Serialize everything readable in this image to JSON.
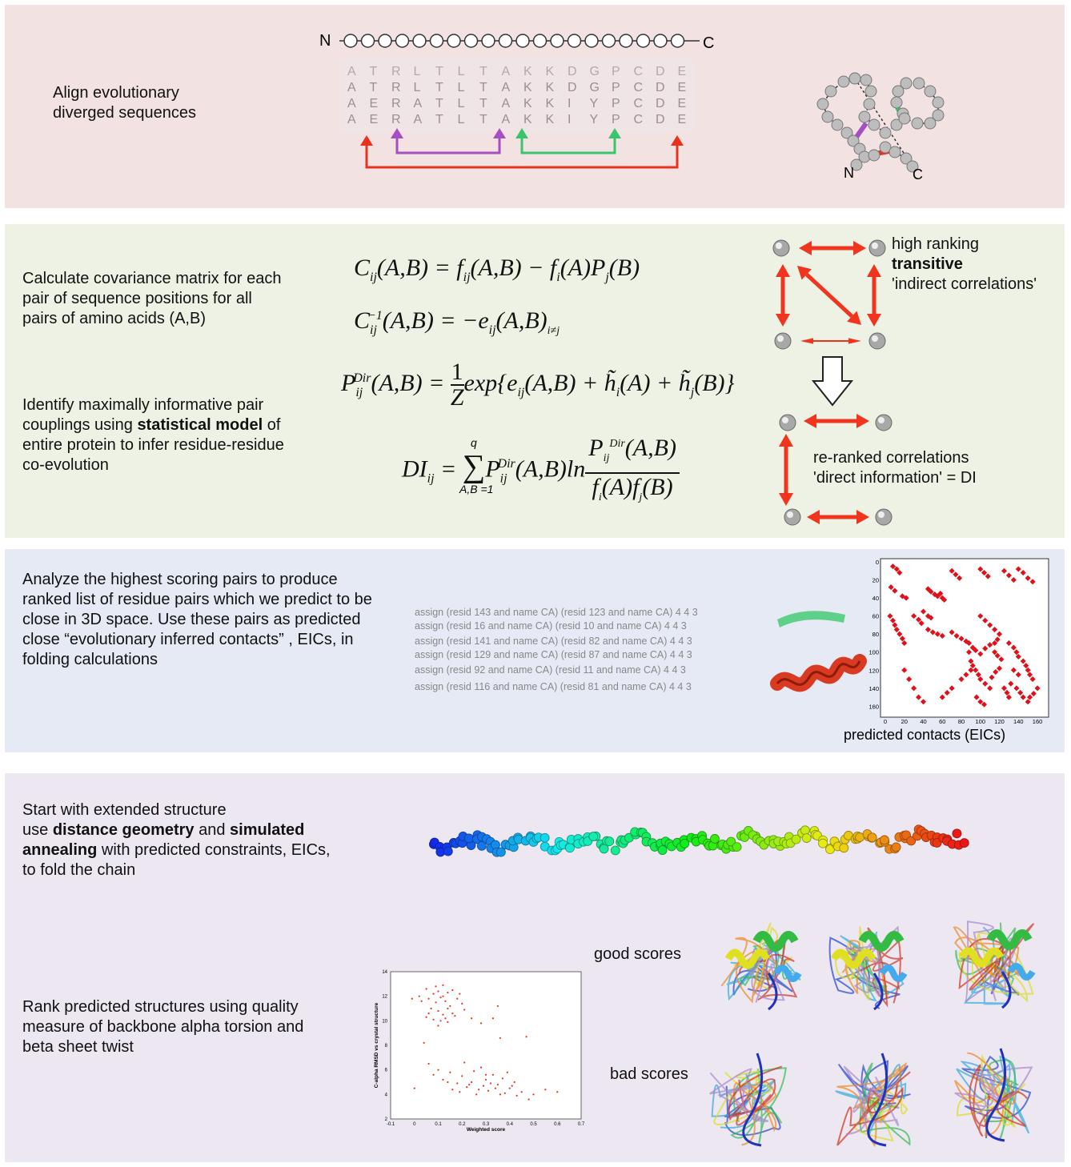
{
  "panel1": {
    "text": [
      "Align evolutionary",
      "diverged sequences"
    ],
    "n_label": "N",
    "c_label": "C",
    "alignment": [
      [
        "A",
        "T",
        "R",
        "L",
        "T",
        "L",
        "T",
        "A",
        "K",
        "K",
        "D",
        "G",
        "P",
        "C",
        "D",
        "E"
      ],
      [
        "A",
        "T",
        "R",
        "L",
        "T",
        "L",
        "T",
        "A",
        "K",
        "K",
        "D",
        "G",
        "P",
        "C",
        "D",
        "E"
      ],
      [
        "A",
        "E",
        "R",
        "A",
        "T",
        "L",
        "T",
        "A",
        "K",
        "K",
        "I",
        "Y",
        "P",
        "C",
        "D",
        "E"
      ],
      [
        "A",
        "E",
        "R",
        "A",
        "T",
        "L",
        "T",
        "A",
        "K",
        "K",
        "I",
        "Y",
        "P",
        "C",
        "D",
        "E"
      ]
    ],
    "structure_n": "N",
    "structure_c": "C",
    "colors": {
      "red": "#e8321e",
      "purple": "#a54fc2",
      "green": "#3ac46b"
    }
  },
  "panel2": {
    "text1": [
      "Calculate covariance matrix for each",
      "pair of sequence positions for all",
      "pairs of amino acids (A,B)"
    ],
    "text2_line1": "Identify maximally informative pair",
    "text2_line2_pre": "couplings using ",
    "text2_line2_bold": "statistical model",
    "text2_line2_post": " of",
    "text2_line3": "entire protein to infer residue-residue",
    "text2_line4": "co-evolution",
    "label_top_1": "high ranking",
    "label_top_2": "transitive",
    "label_top_3": "'indirect correlations'",
    "label_bottom_1": "re-ranked correlations",
    "label_bottom_2": "'direct information' = DI",
    "arrow_color": "#f0341e"
  },
  "panel3": {
    "text": [
      "Analyze the highest scoring pairs to produce",
      "ranked list of residue pairs which we predict to be",
      "close in 3D space. Use these pairs as predicted",
      "close “evolutionary inferred contacts” , EICs, in",
      "folding calculations"
    ],
    "assign_lines": [
      "assign (resid 143 and name CA) (resid 123 and name CA)  4 4 3",
      "assign (resid 16 and name CA) (resid 10 and name CA)  4 4 3",
      "assign (resid 141 and name CA) (resid 82 and name CA)  4 4 3",
      "assign (resid 129 and name CA) (resid 87 and name CA)  4 4 3",
      "assign (resid 92 and name CA) (resid 11 and name CA)  4 4 3",
      "assign (resid 116 and name CA) (resid 81 and name CA)  4 4 3"
    ],
    "contact_map_caption": "predicted contacts (EICs)",
    "contact_map_ticks_y": [
      "20",
      "40",
      "60",
      "80",
      "100",
      "120",
      "140",
      "160"
    ],
    "contact_map_ticks_x": [
      "0",
      "20",
      "40",
      "60",
      "80",
      "100",
      "120",
      "140",
      "160"
    ],
    "contact_map_top_tick": "0"
  },
  "panel4": {
    "line1": "Start with extended structure",
    "line2_pre": "use ",
    "line2_b1": "distance geometry",
    "line2_mid": " and ",
    "line2_b2": "simulated",
    "line3_b": "annealing",
    "line3_post": " with predicted constraints, EICs,",
    "line4": "to fold the chain",
    "rank_text": [
      "Rank predicted structures using quality",
      "measure of backbone alpha torsion and",
      "beta sheet twist"
    ],
    "good_label": "good scores",
    "bad_label": "bad scores"
  },
  "chart_data": {
    "type": "scatter",
    "title": "",
    "xlabel": "Weighted score",
    "ylabel": "C-alpha RMSD vs crystal structure",
    "xlim": [
      -0.1,
      0.7
    ],
    "ylim": [
      2,
      14
    ],
    "x_ticks": [
      "-0.1",
      "0",
      "0.1",
      "0.2",
      "0.3",
      "0.4",
      "0.5",
      "0.6",
      "0.7"
    ],
    "y_ticks": [
      "2",
      "4",
      "6",
      "8",
      "10",
      "12",
      "14"
    ],
    "color": "#e8321e",
    "points": [
      [
        0.05,
        12.6
      ],
      [
        0.08,
        12.2
      ],
      [
        0.1,
        12.4
      ],
      [
        0.12,
        12.0
      ],
      [
        0.14,
        12.3
      ],
      [
        0.06,
        11.8
      ],
      [
        0.09,
        11.5
      ],
      [
        0.11,
        11.9
      ],
      [
        0.13,
        11.6
      ],
      [
        0.15,
        11.2
      ],
      [
        0.07,
        11.0
      ],
      [
        0.1,
        10.8
      ],
      [
        0.12,
        10.5
      ],
      [
        0.14,
        11.0
      ],
      [
        0.16,
        10.6
      ],
      [
        0.05,
        10.3
      ],
      [
        0.08,
        10.1
      ],
      [
        0.11,
        10.0
      ],
      [
        0.13,
        10.2
      ],
      [
        0.17,
        10.4
      ],
      [
        0.03,
        11.6
      ],
      [
        0.02,
        12.0
      ],
      [
        0.18,
        11.8
      ],
      [
        0.2,
        11.4
      ],
      [
        0.09,
        12.8
      ],
      [
        0.12,
        12.9
      ],
      [
        0.16,
        12.5
      ],
      [
        0.21,
        10.9
      ],
      [
        0.24,
        10.2
      ],
      [
        0.06,
        10.6
      ],
      [
        0.35,
        11.2
      ],
      [
        0.33,
        10.2
      ],
      [
        0.28,
        9.8
      ],
      [
        0.1,
        9.6
      ],
      [
        0.14,
        9.9
      ],
      [
        0.36,
        8.6
      ],
      [
        0.47,
        8.7
      ],
      [
        0.04,
        8.2
      ],
      [
        -0.01,
        11.8
      ],
      [
        0.19,
        12.2
      ],
      [
        0.06,
        6.5
      ],
      [
        0.1,
        6.0
      ],
      [
        0.15,
        5.8
      ],
      [
        0.2,
        5.5
      ],
      [
        0.25,
        5.9
      ],
      [
        0.3,
        5.2
      ],
      [
        0.35,
        4.8
      ],
      [
        0.4,
        4.5
      ],
      [
        0.45,
        4.2
      ],
      [
        0.5,
        4.0
      ],
      [
        0.12,
        5.2
      ],
      [
        0.18,
        4.9
      ],
      [
        0.22,
        4.6
      ],
      [
        0.27,
        4.4
      ],
      [
        0.32,
        4.9
      ],
      [
        0.37,
        5.3
      ],
      [
        0.42,
        5.0
      ],
      [
        0.28,
        6.2
      ],
      [
        0.33,
        5.6
      ],
      [
        0.24,
        5.0
      ],
      [
        0.08,
        5.6
      ],
      [
        0.14,
        5.0
      ],
      [
        0.19,
        4.2
      ],
      [
        0.26,
        4.0
      ],
      [
        0.31,
        4.3
      ],
      [
        0.38,
        4.1
      ],
      [
        0.43,
        3.9
      ],
      [
        0.29,
        4.7
      ],
      [
        0.34,
        4.5
      ],
      [
        0.39,
        5.8
      ],
      [
        0.0,
        4.5
      ],
      [
        0.55,
        4.4
      ],
      [
        0.6,
        4.2
      ],
      [
        0.48,
        3.6
      ],
      [
        0.21,
        6.6
      ],
      [
        0.16,
        4.4
      ],
      [
        0.23,
        4.8
      ],
      [
        0.36,
        4.0
      ],
      [
        0.41,
        4.7
      ],
      [
        0.3,
        5.6
      ]
    ]
  },
  "contact_points": [
    [
      8,
      5
    ],
    [
      12,
      8
    ],
    [
      15,
      12
    ],
    [
      6,
      28
    ],
    [
      10,
      32
    ],
    [
      18,
      38
    ],
    [
      22,
      40
    ],
    [
      40,
      55
    ],
    [
      45,
      60
    ],
    [
      48,
      62
    ],
    [
      55,
      38
    ],
    [
      58,
      35
    ],
    [
      60,
      40
    ],
    [
      62,
      42
    ],
    [
      70,
      78
    ],
    [
      75,
      82
    ],
    [
      80,
      85
    ],
    [
      85,
      88
    ],
    [
      88,
      90
    ],
    [
      92,
      95
    ],
    [
      95,
      98
    ],
    [
      100,
      102
    ],
    [
      105,
      96
    ],
    [
      110,
      92
    ],
    [
      115,
      90
    ],
    [
      118,
      86
    ],
    [
      120,
      80
    ],
    [
      88,
      100
    ],
    [
      90,
      110
    ],
    [
      92,
      115
    ],
    [
      95,
      120
    ],
    [
      98,
      125
    ],
    [
      100,
      130
    ],
    [
      105,
      135
    ],
    [
      110,
      140
    ],
    [
      112,
      128
    ],
    [
      116,
      122
    ],
    [
      120,
      118
    ],
    [
      130,
      90
    ],
    [
      135,
      95
    ],
    [
      138,
      100
    ],
    [
      140,
      105
    ],
    [
      145,
      110
    ],
    [
      148,
      115
    ],
    [
      150,
      120
    ],
    [
      152,
      125
    ],
    [
      155,
      130
    ],
    [
      135,
      120
    ],
    [
      140,
      125
    ],
    [
      125,
      140
    ],
    [
      128,
      145
    ],
    [
      130,
      150
    ],
    [
      132,
      135
    ],
    [
      138,
      140
    ],
    [
      142,
      145
    ],
    [
      145,
      150
    ],
    [
      150,
      155
    ],
    [
      125,
      10
    ],
    [
      130,
      15
    ],
    [
      135,
      20
    ],
    [
      140,
      8
    ],
    [
      145,
      12
    ],
    [
      150,
      18
    ],
    [
      155,
      22
    ],
    [
      20,
      120
    ],
    [
      25,
      130
    ],
    [
      30,
      140
    ],
    [
      35,
      150
    ],
    [
      40,
      155
    ],
    [
      60,
      150
    ],
    [
      65,
      145
    ],
    [
      70,
      140
    ],
    [
      80,
      130
    ],
    [
      85,
      125
    ],
    [
      90,
      120
    ],
    [
      5,
      60
    ],
    [
      8,
      65
    ],
    [
      10,
      70
    ],
    [
      12,
      75
    ],
    [
      15,
      80
    ],
    [
      18,
      85
    ],
    [
      20,
      90
    ],
    [
      45,
      75
    ],
    [
      50,
      78
    ],
    [
      55,
      80
    ],
    [
      60,
      82
    ],
    [
      100,
      60
    ],
    [
      105,
      65
    ],
    [
      110,
      70
    ],
    [
      115,
      75
    ],
    [
      45,
      30
    ],
    [
      48,
      33
    ],
    [
      52,
      36
    ],
    [
      30,
      60
    ],
    [
      35,
      64
    ],
    [
      38,
      68
    ],
    [
      100,
      8
    ],
    [
      104,
      12
    ],
    [
      108,
      16
    ],
    [
      70,
      10
    ],
    [
      74,
      14
    ],
    [
      78,
      18
    ],
    [
      160,
      140
    ],
    [
      156,
      146
    ],
    [
      152,
      150
    ],
    [
      96,
      150
    ],
    [
      100,
      155
    ],
    [
      104,
      158
    ],
    [
      115,
      100
    ],
    [
      118,
      104
    ],
    [
      122,
      108
    ]
  ]
}
